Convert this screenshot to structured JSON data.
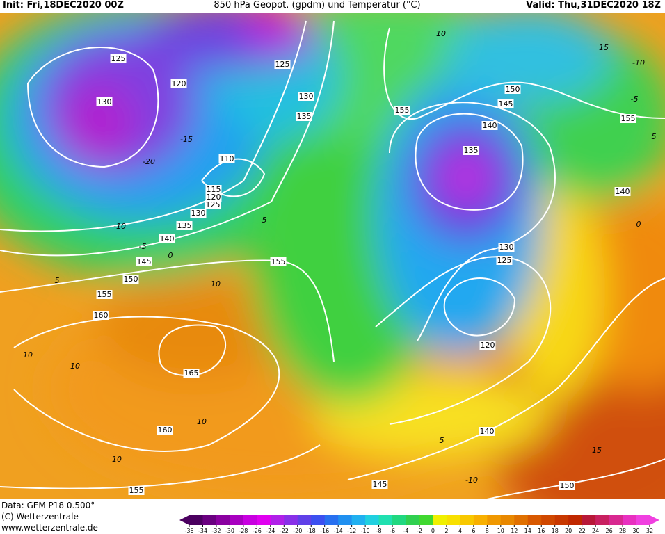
{
  "header": {
    "init": "Init: Fri,18DEC2020 00Z",
    "title": "850 hPa Geopot. (gpdm) und Temperatur (°C)",
    "valid": "Valid: Thu,31DEC2020 18Z"
  },
  "footer": {
    "data": "Data: GEM P18 0.500°",
    "copyright": "(C) Wetterzentrale",
    "url": "www.wetterzentrale.de"
  },
  "geopotential_labels": [
    125,
    130,
    120,
    125,
    130,
    135,
    110,
    115,
    120,
    125,
    130,
    135,
    140,
    145,
    150,
    155,
    160,
    165,
    160,
    155,
    155,
    155,
    150,
    145,
    140,
    135,
    130,
    125,
    120,
    140,
    145,
    150,
    155,
    140
  ],
  "temperature_labels": [
    10,
    15,
    -10,
    -5,
    5,
    -15,
    -20,
    -10,
    -5,
    0,
    5,
    10,
    10,
    10,
    10,
    10,
    5,
    0,
    5,
    -10,
    15
  ],
  "legend": {
    "ticks": [
      -36,
      -34,
      -32,
      -30,
      -28,
      -26,
      -24,
      -22,
      -20,
      -18,
      -16,
      -14,
      -12,
      -10,
      -8,
      -6,
      -4,
      -2,
      0,
      2,
      4,
      6,
      8,
      10,
      12,
      14,
      16,
      18,
      20,
      22,
      24,
      26,
      28,
      30,
      32
    ],
    "colors": [
      "#4b0060",
      "#6a0080",
      "#8a00a0",
      "#a800c0",
      "#c800e0",
      "#e000f0",
      "#b020e8",
      "#8830e8",
      "#6040e8",
      "#3c50f0",
      "#2870f0",
      "#2090f0",
      "#20b0f0",
      "#20d0e0",
      "#20e0b0",
      "#20d880",
      "#30d050",
      "#40d830",
      "#f0f000",
      "#f8e000",
      "#f8c800",
      "#f8b000",
      "#f09800",
      "#e88800",
      "#e07000",
      "#d85800",
      "#d04800",
      "#c83800",
      "#c02800",
      "#b81838",
      "#c82060",
      "#d82890",
      "#e830c0",
      "#f040e0"
    ]
  }
}
